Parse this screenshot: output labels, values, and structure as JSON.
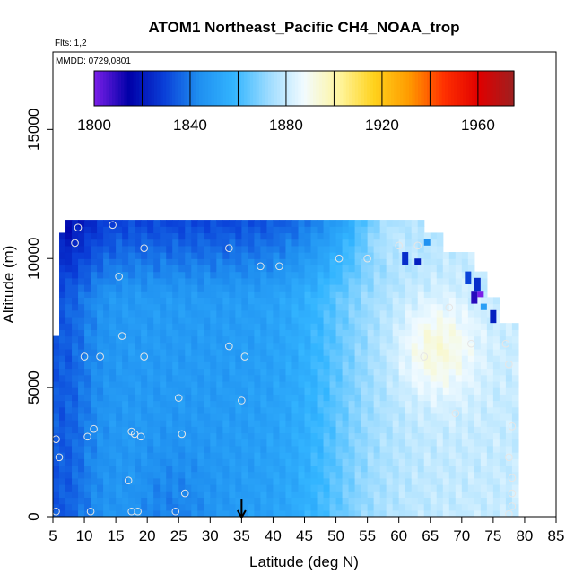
{
  "chart_data": {
    "type": "heatmap",
    "title": "ATOM1 Northeast_Pacific CH4_NOAA_trop",
    "flights_label": "Flts: 1,2",
    "mmdd_label": "MMDD: 0729,0801",
    "xlabel": "Latitude (deg N)",
    "ylabel": "Altitude (m)",
    "xlim": [
      5,
      85
    ],
    "ylim": [
      0,
      18000
    ],
    "x_ticks": [
      "5",
      "10",
      "15",
      "20",
      "25",
      "30",
      "35",
      "40",
      "45",
      "50",
      "55",
      "60",
      "65",
      "70",
      "75",
      "80",
      "85"
    ],
    "y_ticks": [
      "0",
      "5000",
      "10000",
      "15000"
    ],
    "colorbar": {
      "range": [
        1800,
        1975
      ],
      "tick_labels": [
        "1800",
        "1840",
        "1880",
        "1920",
        "1960"
      ],
      "tick_values": [
        1800,
        1840,
        1880,
        1920,
        1960
      ],
      "stops": [
        "#7b1fe8",
        "#0000a8",
        "#0a3fd8",
        "#1f8ff0",
        "#33b5ff",
        "#9edcff",
        "#f2fbff",
        "#fff5a0",
        "#ffd21c",
        "#ff9b00",
        "#ff3000",
        "#e00000",
        "#9e2020"
      ]
    },
    "cell_size": {
      "dlat": 1,
      "dalt": 250
    },
    "arrow_latitude": 35,
    "colored_blocks": [
      {
        "lat": [
          71.5,
          72.5
        ],
        "alt": [
          8250,
          8750
        ],
        "value": 1810
      },
      {
        "lat": [
          72.5,
          73.5
        ],
        "alt": [
          8500,
          8750
        ],
        "value": 1800
      },
      {
        "lat": [
          74.5,
          75.5
        ],
        "alt": [
          7500,
          8000
        ],
        "value": 1822
      },
      {
        "lat": [
          72.0,
          73.0
        ],
        "alt": [
          8750,
          9250
        ],
        "value": 1825
      },
      {
        "lat": [
          60.5,
          61.5
        ],
        "alt": [
          9750,
          10250
        ],
        "value": 1825
      },
      {
        "lat": [
          62.5,
          63.5
        ],
        "alt": [
          9750,
          10000
        ],
        "value": 1822
      },
      {
        "lat": [
          70.5,
          71.5
        ],
        "alt": [
          9000,
          9500
        ],
        "value": 1830
      },
      {
        "lat": [
          64.0,
          65.0
        ],
        "alt": [
          10500,
          10750
        ],
        "value": 1845
      },
      {
        "lat": [
          73.0,
          74.0
        ],
        "alt": [
          8000,
          8250
        ],
        "value": 1850
      }
    ],
    "observation_points": [
      {
        "lat": 5.5,
        "alt": 3000
      },
      {
        "lat": 6.0,
        "alt": 2300
      },
      {
        "lat": 8.5,
        "alt": 10600
      },
      {
        "lat": 9.0,
        "alt": 11200
      },
      {
        "lat": 10.0,
        "alt": 6200
      },
      {
        "lat": 10.5,
        "alt": 3100
      },
      {
        "lat": 11.5,
        "alt": 3400
      },
      {
        "lat": 11.0,
        "alt": 200
      },
      {
        "lat": 12.5,
        "alt": 6200
      },
      {
        "lat": 14.5,
        "alt": 11300
      },
      {
        "lat": 15.5,
        "alt": 9300
      },
      {
        "lat": 16.0,
        "alt": 7000
      },
      {
        "lat": 17.0,
        "alt": 1400
      },
      {
        "lat": 17.5,
        "alt": 3300
      },
      {
        "lat": 18.0,
        "alt": 3200
      },
      {
        "lat": 19.0,
        "alt": 3100
      },
      {
        "lat": 18.5,
        "alt": 200
      },
      {
        "lat": 17.5,
        "alt": 200
      },
      {
        "lat": 19.5,
        "alt": 6200
      },
      {
        "lat": 19.5,
        "alt": 10400
      },
      {
        "lat": 24.5,
        "alt": 200
      },
      {
        "lat": 25.0,
        "alt": 4600
      },
      {
        "lat": 25.5,
        "alt": 3200
      },
      {
        "lat": 26.0,
        "alt": 900
      },
      {
        "lat": 33.0,
        "alt": 6600
      },
      {
        "lat": 33.0,
        "alt": 10400
      },
      {
        "lat": 35.0,
        "alt": 4500
      },
      {
        "lat": 35.5,
        "alt": 6200
      },
      {
        "lat": 38.0,
        "alt": 9700
      },
      {
        "lat": 41.0,
        "alt": 9700
      },
      {
        "lat": 50.5,
        "alt": 10000
      },
      {
        "lat": 55.0,
        "alt": 10000
      },
      {
        "lat": 60.0,
        "alt": 10500
      },
      {
        "lat": 63.0,
        "alt": 10500
      },
      {
        "lat": 64.0,
        "alt": 6200
      },
      {
        "lat": 68.0,
        "alt": 8100
      },
      {
        "lat": 69.0,
        "alt": 4000
      },
      {
        "lat": 71.5,
        "alt": 6700
      },
      {
        "lat": 77.0,
        "alt": 6700
      },
      {
        "lat": 77.5,
        "alt": 5900
      },
      {
        "lat": 78.0,
        "alt": 3500
      },
      {
        "lat": 77.5,
        "alt": 2300
      },
      {
        "lat": 78.0,
        "alt": 1500
      },
      {
        "lat": 78.0,
        "alt": 900
      },
      {
        "lat": 78.0,
        "alt": 400
      },
      {
        "lat": 77.5,
        "alt": 100
      },
      {
        "lat": 5.5,
        "alt": 200
      }
    ]
  }
}
